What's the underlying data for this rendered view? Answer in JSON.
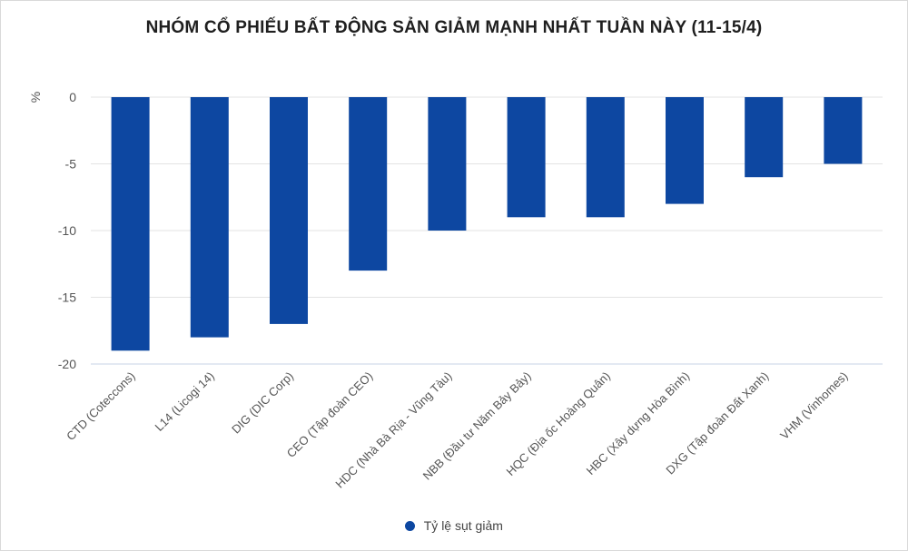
{
  "chart_data": {
    "type": "bar",
    "title": "NHÓM CỔ PHIẾU BẤT ĐỘNG SẢN GIẢM MẠNH NHẤT TUẦN NÀY (11-15/4)",
    "ylabel": "%",
    "xlabel": "",
    "ylim": [
      -20,
      0
    ],
    "yticks": [
      0,
      -5,
      -10,
      -15,
      -20
    ],
    "categories": [
      "CTD (Coteccons)",
      "L14 (Licogi 14)",
      "DIG (DIC Corp)",
      "CEO (Tập đoàn CEO)",
      "HDC (Nhà Bà Rịa - Vũng Tàu)",
      "NBB (Đầu tư Năm Bảy Bảy)",
      "HQC (Địa ốc Hoàng Quân)",
      "HBC (Xây dựng Hòa Bình)",
      "DXG (Tập đoàn Đất Xanh)",
      "VHM (Vinhomes)"
    ],
    "series": [
      {
        "name": "Tỷ lệ sụt giảm",
        "color": "#0d47a1",
        "values": [
          -19,
          -18,
          -17,
          -13,
          -10,
          -9,
          -9,
          -8,
          -6,
          -5
        ]
      }
    ],
    "grid": true,
    "legend_position": "bottom"
  }
}
